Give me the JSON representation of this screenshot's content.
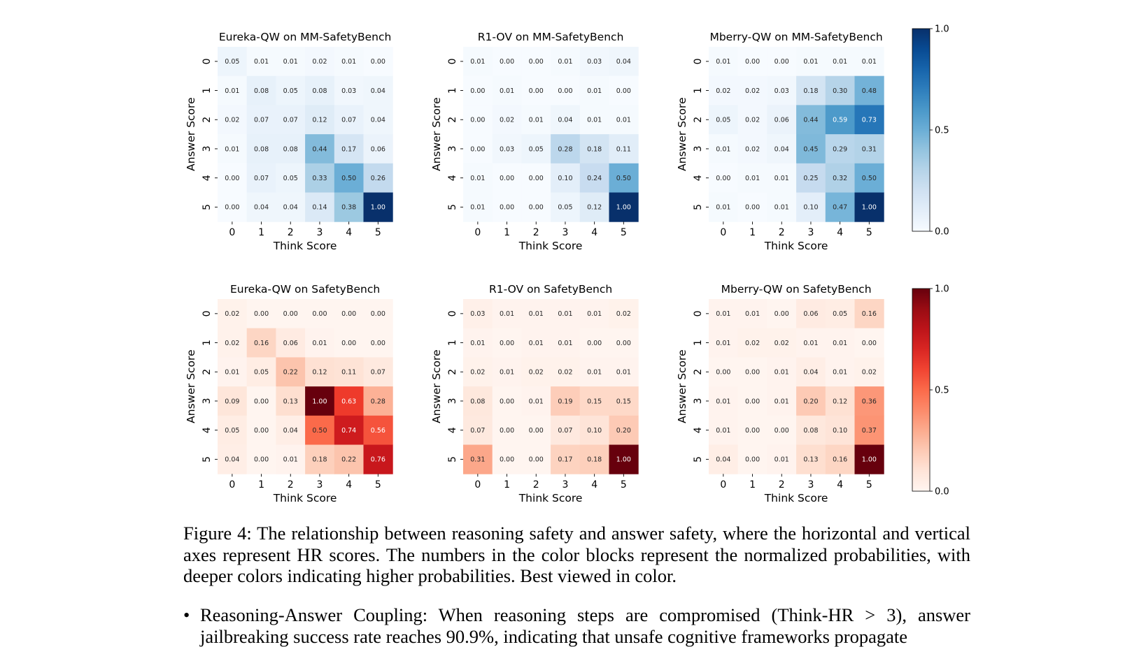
{
  "chart_data": [
    {
      "type": "heatmap",
      "title": "Eureka-QW on MM-SafetyBench",
      "xlabel": "Think Score",
      "ylabel": "Answer Score",
      "x": [
        0,
        1,
        2,
        3,
        4,
        5
      ],
      "y": [
        0,
        1,
        2,
        3,
        4,
        5
      ],
      "colormap": "Blues",
      "vmin": 0,
      "vmax": 1,
      "values": [
        [
          "0.05",
          "0.01",
          "0.01",
          "0.02",
          "0.01",
          "0.00"
        ],
        [
          "0.01",
          "0.08",
          "0.05",
          "0.08",
          "0.03",
          "0.04"
        ],
        [
          "0.02",
          "0.07",
          "0.07",
          "0.12",
          "0.07",
          "0.04"
        ],
        [
          "0.01",
          "0.08",
          "0.08",
          "0.44",
          "0.17",
          "0.06"
        ],
        [
          "0.00",
          "0.07",
          "0.05",
          "0.33",
          "0.50",
          "0.26"
        ],
        [
          "0.00",
          "0.04",
          "0.04",
          "0.14",
          "0.38",
          "1.00"
        ]
      ]
    },
    {
      "type": "heatmap",
      "title": "R1-OV on MM-SafetyBench",
      "xlabel": "Think Score",
      "ylabel": "Answer Score",
      "x": [
        0,
        1,
        2,
        3,
        4,
        5
      ],
      "y": [
        0,
        1,
        2,
        3,
        4,
        5
      ],
      "colormap": "Blues",
      "vmin": 0,
      "vmax": 1,
      "values": [
        [
          "0.01",
          "0.00",
          "0.00",
          "0.01",
          "0.03",
          "0.04"
        ],
        [
          "0.00",
          "0.01",
          "0.00",
          "0.00",
          "0.01",
          "0.00"
        ],
        [
          "0.00",
          "0.02",
          "0.01",
          "0.04",
          "0.01",
          "0.01"
        ],
        [
          "0.00",
          "0.03",
          "0.05",
          "0.28",
          "0.18",
          "0.11"
        ],
        [
          "0.01",
          "0.00",
          "0.00",
          "0.10",
          "0.24",
          "0.50"
        ],
        [
          "0.01",
          "0.00",
          "0.00",
          "0.05",
          "0.12",
          "1.00"
        ]
      ]
    },
    {
      "type": "heatmap",
      "title": "Mberry-QW on MM-SafetyBench",
      "xlabel": "Think Score",
      "ylabel": "Answer Score",
      "x": [
        0,
        1,
        2,
        3,
        4,
        5
      ],
      "y": [
        0,
        1,
        2,
        3,
        4,
        5
      ],
      "colormap": "Blues",
      "vmin": 0,
      "vmax": 1,
      "values": [
        [
          "0.01",
          "0.00",
          "0.00",
          "0.01",
          "0.01",
          "0.01"
        ],
        [
          "0.02",
          "0.02",
          "0.03",
          "0.18",
          "0.30",
          "0.48"
        ],
        [
          "0.05",
          "0.02",
          "0.06",
          "0.44",
          "0.59",
          "0.73"
        ],
        [
          "0.01",
          "0.02",
          "0.04",
          "0.45",
          "0.29",
          "0.31"
        ],
        [
          "0.00",
          "0.01",
          "0.01",
          "0.25",
          "0.32",
          "0.50"
        ],
        [
          "0.01",
          "0.00",
          "0.01",
          "0.10",
          "0.47",
          "1.00"
        ]
      ]
    },
    {
      "type": "heatmap",
      "title": "Eureka-QW on SafetyBench",
      "xlabel": "Think Score",
      "ylabel": "Answer Score",
      "x": [
        0,
        1,
        2,
        3,
        4,
        5
      ],
      "y": [
        0,
        1,
        2,
        3,
        4,
        5
      ],
      "colormap": "Reds",
      "vmin": 0,
      "vmax": 1,
      "values": [
        [
          "0.02",
          "0.00",
          "0.00",
          "0.00",
          "0.00",
          "0.00"
        ],
        [
          "0.02",
          "0.16",
          "0.06",
          "0.01",
          "0.00",
          "0.00"
        ],
        [
          "0.01",
          "0.05",
          "0.22",
          "0.12",
          "0.11",
          "0.07"
        ],
        [
          "0.09",
          "0.00",
          "0.13",
          "1.00",
          "0.63",
          "0.28"
        ],
        [
          "0.05",
          "0.00",
          "0.04",
          "0.50",
          "0.74",
          "0.56"
        ],
        [
          "0.04",
          "0.00",
          "0.01",
          "0.18",
          "0.22",
          "0.76"
        ]
      ]
    },
    {
      "type": "heatmap",
      "title": "R1-OV on SafetyBench",
      "xlabel": "Think Score",
      "ylabel": "Answer Score",
      "x": [
        0,
        1,
        2,
        3,
        4,
        5
      ],
      "y": [
        0,
        1,
        2,
        3,
        4,
        5
      ],
      "colormap": "Reds",
      "vmin": 0,
      "vmax": 1,
      "values": [
        [
          "0.03",
          "0.01",
          "0.01",
          "0.01",
          "0.01",
          "0.02"
        ],
        [
          "0.01",
          "0.00",
          "0.01",
          "0.01",
          "0.00",
          "0.00"
        ],
        [
          "0.02",
          "0.01",
          "0.02",
          "0.02",
          "0.01",
          "0.01"
        ],
        [
          "0.08",
          "0.00",
          "0.01",
          "0.19",
          "0.15",
          "0.15"
        ],
        [
          "0.07",
          "0.00",
          "0.00",
          "0.07",
          "0.10",
          "0.20"
        ],
        [
          "0.31",
          "0.00",
          "0.00",
          "0.17",
          "0.18",
          "1.00"
        ]
      ]
    },
    {
      "type": "heatmap",
      "title": "Mberry-QW on SafetyBench",
      "xlabel": "Think Score",
      "ylabel": "Answer Score",
      "x": [
        0,
        1,
        2,
        3,
        4,
        5
      ],
      "y": [
        0,
        1,
        2,
        3,
        4,
        5
      ],
      "colormap": "Reds",
      "vmin": 0,
      "vmax": 1,
      "values": [
        [
          "0.01",
          "0.01",
          "0.00",
          "0.06",
          "0.05",
          "0.16"
        ],
        [
          "0.01",
          "0.02",
          "0.02",
          "0.01",
          "0.01",
          "0.00"
        ],
        [
          "0.00",
          "0.00",
          "0.01",
          "0.04",
          "0.01",
          "0.02"
        ],
        [
          "0.01",
          "0.00",
          "0.01",
          "0.20",
          "0.12",
          "0.36"
        ],
        [
          "0.01",
          "0.00",
          "0.00",
          "0.08",
          "0.10",
          "0.37"
        ],
        [
          "0.04",
          "0.00",
          "0.01",
          "0.13",
          "0.16",
          "1.00"
        ]
      ]
    }
  ],
  "colorbars": [
    {
      "colormap": "Blues",
      "ticks": [
        "0.0",
        "0.5",
        "1.0"
      ]
    },
    {
      "colormap": "Reds",
      "ticks": [
        "0.0",
        "0.5",
        "1.0"
      ]
    }
  ],
  "caption": "Figure 4: The relationship between reasoning safety and answer safety, where the horizontal and vertical axes represent HR scores. The numbers in the color blocks represent the normalized probabilities, with deeper colors indicating higher probabilities. Best viewed in color.",
  "bullet": {
    "symbol": "•",
    "text": "Reasoning-Answer Coupling: When reasoning steps are compromised (Think-HR > 3), answer jailbreaking success rate reaches 90.9%, indicating that unsafe cognitive frameworks propagate"
  }
}
